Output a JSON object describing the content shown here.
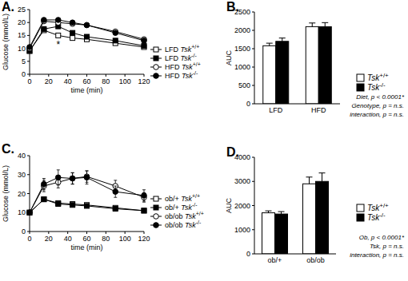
{
  "chart_data": [
    {
      "type": "line",
      "title": "A.",
      "x": [
        0,
        15,
        30,
        45,
        60,
        90,
        120
      ],
      "xlim": [
        0,
        120
      ],
      "xticks": [
        0,
        20,
        40,
        60,
        80,
        100,
        120
      ],
      "ylim": [
        0,
        25
      ],
      "yticks": [
        0,
        5,
        10,
        15,
        20,
        25
      ],
      "x_label": "time (min)",
      "y_label": "Glucose (mmol/L)",
      "legend": "right",
      "series": [
        {
          "name": "LFD Tsk+/+",
          "color": "#000000",
          "marker": "square-open",
          "values": [
            9,
            17,
            15,
            14,
            13.5,
            12,
            10.5
          ],
          "errors": [
            0.4,
            0.7,
            0.6,
            0.5,
            0.5,
            0.4,
            0.4
          ]
        },
        {
          "name": "LFD Tsk-/-",
          "color": "#000000",
          "marker": "square",
          "values": [
            9,
            17.5,
            18.5,
            16,
            14.5,
            13,
            11
          ],
          "errors": [
            0.4,
            0.8,
            0.8,
            0.6,
            0.5,
            0.5,
            0.4
          ]
        },
        {
          "name": "HFD Tsk+/+",
          "color": "#000000",
          "marker": "circle-open",
          "values": [
            10,
            20.5,
            20,
            19.5,
            19,
            16.5,
            13.5
          ],
          "errors": [
            0.4,
            0.6,
            0.7,
            0.6,
            0.6,
            0.6,
            0.5
          ]
        },
        {
          "name": "HFD Tsk-/-",
          "color": "#000000",
          "marker": "circle",
          "values": [
            10.5,
            21,
            21,
            20,
            19,
            16,
            13
          ],
          "errors": [
            0.4,
            0.6,
            0.7,
            0.7,
            0.6,
            0.6,
            0.5
          ]
        }
      ],
      "annotations": [
        {
          "text": "*",
          "x": 30,
          "y": 12
        }
      ]
    },
    {
      "type": "bar",
      "title": "B.",
      "categories": [
        "LFD",
        "HFD"
      ],
      "ylim": [
        0,
        2500
      ],
      "yticks": [
        0,
        500,
        1000,
        1500,
        2000,
        2500
      ],
      "y_label": "AUC",
      "legend": "right",
      "series": [
        {
          "name": "Tsk+/+",
          "color": "#ffffff",
          "values": [
            1580,
            2100
          ],
          "errors": [
            70,
            100
          ]
        },
        {
          "name": "Tsk-/-",
          "color": "#000000",
          "values": [
            1700,
            2100
          ],
          "errors": [
            90,
            110
          ]
        }
      ],
      "annotations": [
        "Diet, p < 0.0001*",
        "Genotype, p = n.s.",
        "interaction, p = n.s."
      ]
    },
    {
      "type": "line",
      "title": "C.",
      "x": [
        0,
        15,
        30,
        45,
        60,
        90,
        120
      ],
      "xlim": [
        0,
        120
      ],
      "xticks": [
        0,
        20,
        40,
        60,
        80,
        100,
        120
      ],
      "ylim": [
        0,
        40
      ],
      "yticks": [
        0,
        10,
        20,
        30,
        40
      ],
      "x_label": "time (min)",
      "y_label": "Glucose (mmol/L)",
      "legend": "right",
      "series": [
        {
          "name": "ob/+ Tsk+/+",
          "color": "#000000",
          "marker": "square-open",
          "values": [
            10,
            17,
            15,
            14.5,
            14,
            12.5,
            11
          ],
          "errors": [
            0.4,
            0.8,
            0.6,
            0.5,
            0.5,
            0.4,
            0.4
          ]
        },
        {
          "name": "ob/+ Tsk-/-",
          "color": "#000000",
          "marker": "square",
          "values": [
            10,
            17,
            14.5,
            14,
            13.5,
            12,
            11
          ],
          "errors": [
            0.4,
            0.7,
            0.6,
            0.5,
            0.5,
            0.4,
            0.4
          ]
        },
        {
          "name": "ob/ob Tsk+/+",
          "color": "#000000",
          "marker": "circle-open",
          "values": [
            10,
            24,
            26,
            28,
            29,
            24,
            18
          ],
          "errors": [
            1,
            3,
            3,
            3,
            3,
            3,
            2.5
          ]
        },
        {
          "name": "ob/ob Tsk-/-",
          "color": "#000000",
          "marker": "circle",
          "values": [
            10,
            25,
            28.5,
            28,
            28.5,
            21,
            19
          ],
          "errors": [
            1,
            3,
            4,
            3,
            3.5,
            3,
            3
          ]
        }
      ]
    },
    {
      "type": "bar",
      "title": "D.",
      "categories": [
        "ob/+",
        "ob/ob"
      ],
      "ylim": [
        0,
        4000
      ],
      "yticks": [
        0,
        1000,
        2000,
        3000,
        4000
      ],
      "y_label": "AUC",
      "legend": "right",
      "series": [
        {
          "name": "Tsk+/+",
          "color": "#ffffff",
          "values": [
            1700,
            2900
          ],
          "errors": [
            80,
            280
          ]
        },
        {
          "name": "Tsk-/-",
          "color": "#000000",
          "values": [
            1650,
            3000
          ],
          "errors": [
            100,
            350
          ]
        }
      ],
      "annotations": [
        "Ob, p < 0.0001*",
        "Tsk, p = n.s.",
        "interaction, p = n.s."
      ]
    }
  ]
}
